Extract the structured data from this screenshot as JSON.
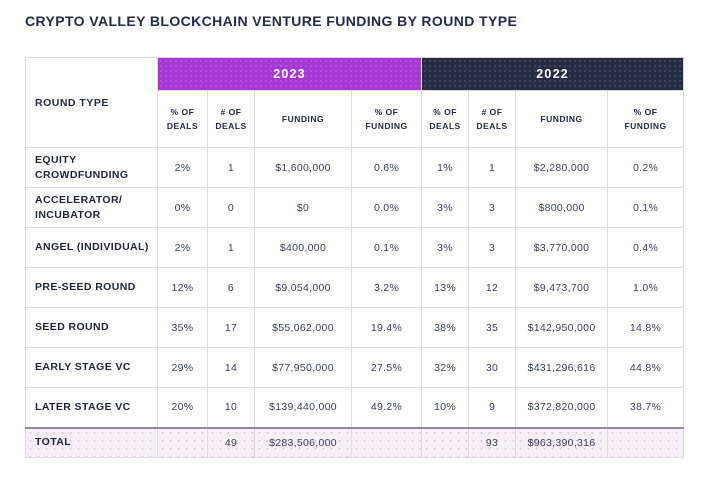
{
  "title": "CRYPTO VALLEY BLOCKCHAIN VENTURE FUNDING BY ROUND TYPE",
  "colors": {
    "year_2023_bg": "#A637D4",
    "year_2022_bg": "#252B42",
    "total_row_bg": "#F8EEF7",
    "total_row_top_border": "#8E89A5",
    "title_text": "#242B47",
    "body_text": "#3A4160",
    "header_text": "#FFFFFF"
  },
  "chart_data": {
    "type": "table",
    "title": "CRYPTO VALLEY BLOCKCHAIN VENTURE FUNDING BY ROUND TYPE",
    "row_header": "ROUND TYPE",
    "year_groups": [
      "2023",
      "2022"
    ],
    "sub_columns": [
      "% OF DEALS",
      "# OF DEALS",
      "FUNDING",
      "% OF FUNDING"
    ],
    "rows": [
      {
        "label": "EQUITY CROWDFUNDING",
        "y2023": [
          "2%",
          "1",
          "$1,600,000",
          "0.6%"
        ],
        "y2022": [
          "1%",
          "1",
          "$2,280,000",
          "0.2%"
        ]
      },
      {
        "label": "ACCELERATOR/INCUBATOR",
        "y2023": [
          "0%",
          "0",
          "$0",
          "0.0%"
        ],
        "y2022": [
          "3%",
          "3",
          "$800,000",
          "0.1%"
        ]
      },
      {
        "label": "ANGEL (INDIVIDUAL)",
        "y2023": [
          "2%",
          "1",
          "$400,000",
          "0.1%"
        ],
        "y2022": [
          "3%",
          "3",
          "$3,770,000",
          "0.4%"
        ]
      },
      {
        "label": "PRE-SEED ROUND",
        "y2023": [
          "12%",
          "6",
          "$9,054,000",
          "3.2%"
        ],
        "y2022": [
          "13%",
          "12",
          "$9,473,700",
          "1.0%"
        ]
      },
      {
        "label": "SEED ROUND",
        "y2023": [
          "35%",
          "17",
          "$55,062,000",
          "19.4%"
        ],
        "y2022": [
          "38%",
          "35",
          "$142,950,000",
          "14.8%"
        ]
      },
      {
        "label": "EARLY STAGE VC",
        "y2023": [
          "29%",
          "14",
          "$77,950,000",
          "27.5%"
        ],
        "y2022": [
          "32%",
          "30",
          "$431,296,616",
          "44.8%"
        ]
      },
      {
        "label": "LATER STAGE VC",
        "y2023": [
          "20%",
          "10",
          "$139,440,000",
          "49.2%"
        ],
        "y2022": [
          "10%",
          "9",
          "$372,820,000",
          "38.7%"
        ]
      }
    ],
    "total": {
      "label": "TOTAL",
      "y2023": [
        "",
        "49",
        "$283,506,000",
        ""
      ],
      "y2022": [
        "",
        "93",
        "$963,390,316",
        ""
      ]
    }
  }
}
